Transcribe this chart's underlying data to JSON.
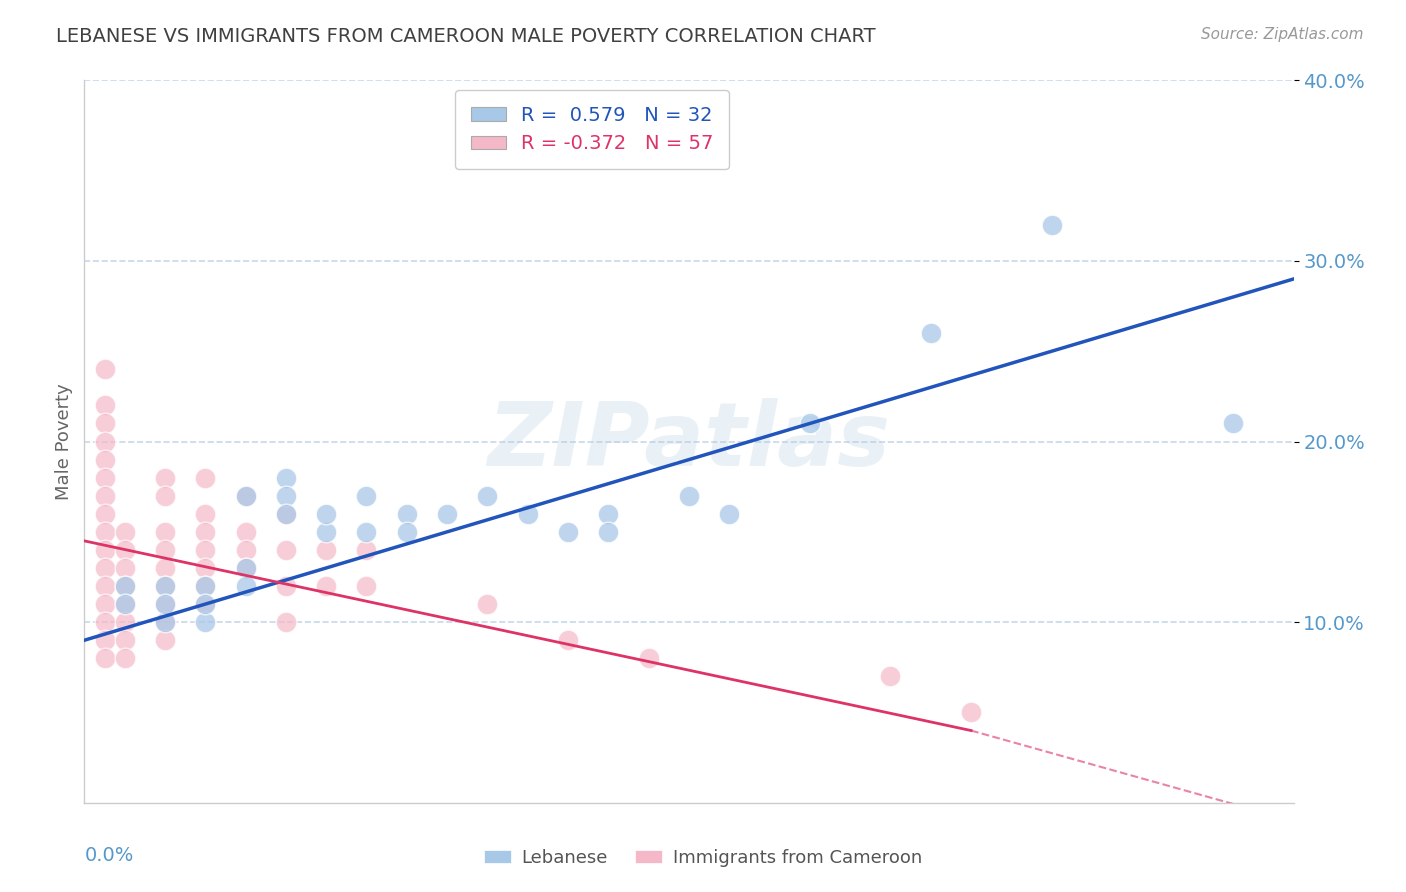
{
  "title": "LEBANESE VS IMMIGRANTS FROM CAMEROON MALE POVERTY CORRELATION CHART",
  "source": "Source: ZipAtlas.com",
  "ylabel": "Male Poverty",
  "xlim": [
    0,
    0.3
  ],
  "ylim": [
    0,
    0.4
  ],
  "yticks": [
    0.1,
    0.2,
    0.3,
    0.4
  ],
  "ytick_labels": [
    "10.0%",
    "20.0%",
    "30.0%",
    "40.0%"
  ],
  "legend_r_blue": "0.579",
  "legend_n_blue": "32",
  "legend_r_pink": "-0.372",
  "legend_n_pink": "57",
  "blue_color": "#a8c8e8",
  "pink_color": "#f5b8c8",
  "blue_line_color": "#2255bb",
  "pink_line_color": "#dd3366",
  "blue_scatter": [
    [
      0.01,
      0.12
    ],
    [
      0.01,
      0.11
    ],
    [
      0.02,
      0.1
    ],
    [
      0.02,
      0.12
    ],
    [
      0.02,
      0.11
    ],
    [
      0.03,
      0.1
    ],
    [
      0.03,
      0.12
    ],
    [
      0.03,
      0.11
    ],
    [
      0.04,
      0.13
    ],
    [
      0.04,
      0.12
    ],
    [
      0.04,
      0.17
    ],
    [
      0.05,
      0.18
    ],
    [
      0.05,
      0.17
    ],
    [
      0.05,
      0.16
    ],
    [
      0.06,
      0.15
    ],
    [
      0.06,
      0.16
    ],
    [
      0.07,
      0.17
    ],
    [
      0.07,
      0.15
    ],
    [
      0.08,
      0.16
    ],
    [
      0.08,
      0.15
    ],
    [
      0.09,
      0.16
    ],
    [
      0.1,
      0.17
    ],
    [
      0.11,
      0.16
    ],
    [
      0.12,
      0.15
    ],
    [
      0.13,
      0.16
    ],
    [
      0.13,
      0.15
    ],
    [
      0.15,
      0.17
    ],
    [
      0.16,
      0.16
    ],
    [
      0.18,
      0.21
    ],
    [
      0.21,
      0.26
    ],
    [
      0.24,
      0.32
    ],
    [
      0.285,
      0.21
    ]
  ],
  "pink_scatter": [
    [
      0.005,
      0.24
    ],
    [
      0.005,
      0.22
    ],
    [
      0.005,
      0.21
    ],
    [
      0.005,
      0.2
    ],
    [
      0.005,
      0.19
    ],
    [
      0.005,
      0.18
    ],
    [
      0.005,
      0.17
    ],
    [
      0.005,
      0.16
    ],
    [
      0.005,
      0.15
    ],
    [
      0.005,
      0.14
    ],
    [
      0.005,
      0.13
    ],
    [
      0.005,
      0.12
    ],
    [
      0.005,
      0.11
    ],
    [
      0.005,
      0.1
    ],
    [
      0.005,
      0.09
    ],
    [
      0.005,
      0.08
    ],
    [
      0.01,
      0.15
    ],
    [
      0.01,
      0.14
    ],
    [
      0.01,
      0.13
    ],
    [
      0.01,
      0.12
    ],
    [
      0.01,
      0.11
    ],
    [
      0.01,
      0.1
    ],
    [
      0.01,
      0.09
    ],
    [
      0.01,
      0.08
    ],
    [
      0.02,
      0.18
    ],
    [
      0.02,
      0.17
    ],
    [
      0.02,
      0.15
    ],
    [
      0.02,
      0.14
    ],
    [
      0.02,
      0.13
    ],
    [
      0.02,
      0.12
    ],
    [
      0.02,
      0.11
    ],
    [
      0.02,
      0.1
    ],
    [
      0.02,
      0.09
    ],
    [
      0.03,
      0.18
    ],
    [
      0.03,
      0.16
    ],
    [
      0.03,
      0.15
    ],
    [
      0.03,
      0.14
    ],
    [
      0.03,
      0.13
    ],
    [
      0.03,
      0.12
    ],
    [
      0.03,
      0.11
    ],
    [
      0.04,
      0.17
    ],
    [
      0.04,
      0.15
    ],
    [
      0.04,
      0.14
    ],
    [
      0.04,
      0.13
    ],
    [
      0.05,
      0.16
    ],
    [
      0.05,
      0.14
    ],
    [
      0.05,
      0.12
    ],
    [
      0.05,
      0.1
    ],
    [
      0.06,
      0.14
    ],
    [
      0.06,
      0.12
    ],
    [
      0.07,
      0.14
    ],
    [
      0.07,
      0.12
    ],
    [
      0.1,
      0.11
    ],
    [
      0.12,
      0.09
    ],
    [
      0.14,
      0.08
    ],
    [
      0.2,
      0.07
    ],
    [
      0.22,
      0.05
    ]
  ],
  "background_color": "#ffffff",
  "grid_color": "#c8d8e8",
  "title_color": "#404040",
  "axis_color": "#5599cc"
}
